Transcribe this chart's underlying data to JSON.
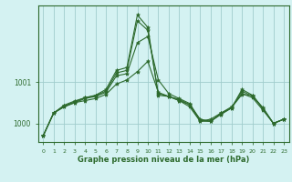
{
  "title": "Graphe pression niveau de la mer (hPa)",
  "bg_color": "#d4f2f2",
  "grid_color": "#a0cccc",
  "line_color": "#2d6a2d",
  "marker_color": "#2d6a2d",
  "ylim": [
    999.55,
    1002.85
  ],
  "xlim": [
    -0.5,
    23.5
  ],
  "yticks": [
    1000,
    1001
  ],
  "xticks": [
    0,
    1,
    2,
    3,
    4,
    5,
    6,
    7,
    8,
    9,
    10,
    11,
    12,
    13,
    14,
    15,
    16,
    17,
    18,
    19,
    20,
    21,
    22,
    23
  ],
  "series": [
    [
      999.7,
      1000.25,
      1000.4,
      1000.5,
      1000.55,
      1000.6,
      1000.7,
      1000.95,
      1001.05,
      1001.25,
      1001.5,
      1000.75,
      1000.65,
      1000.55,
      1000.4,
      1000.05,
      1000.1,
      1000.25,
      1000.4,
      1000.72,
      1000.62,
      1000.32,
      1000.0,
      1000.1
    ],
    [
      999.7,
      1000.25,
      1000.4,
      1000.5,
      1000.6,
      1000.65,
      1000.75,
      1001.15,
      1001.2,
      1001.95,
      1002.1,
      1001.05,
      1000.72,
      1000.6,
      1000.48,
      1000.08,
      1000.05,
      1000.22,
      1000.38,
      1000.7,
      1000.68,
      1000.37,
      1000.0,
      1000.1
    ],
    [
      999.7,
      1000.25,
      1000.42,
      1000.52,
      1000.62,
      1000.67,
      1000.78,
      1001.22,
      1001.28,
      1002.48,
      1002.25,
      1000.72,
      1000.65,
      1000.58,
      1000.45,
      1000.1,
      1000.05,
      1000.22,
      1000.37,
      1000.78,
      1000.65,
      1000.38,
      1000.0,
      1000.1
    ],
    [
      999.7,
      1000.25,
      1000.44,
      1000.54,
      1000.62,
      1000.68,
      1000.82,
      1001.28,
      1001.35,
      1002.62,
      1002.32,
      1000.68,
      1000.65,
      1000.55,
      1000.45,
      1000.05,
      1000.05,
      1000.25,
      1000.37,
      1000.82,
      1000.68,
      1000.35,
      1000.0,
      1000.1
    ]
  ]
}
